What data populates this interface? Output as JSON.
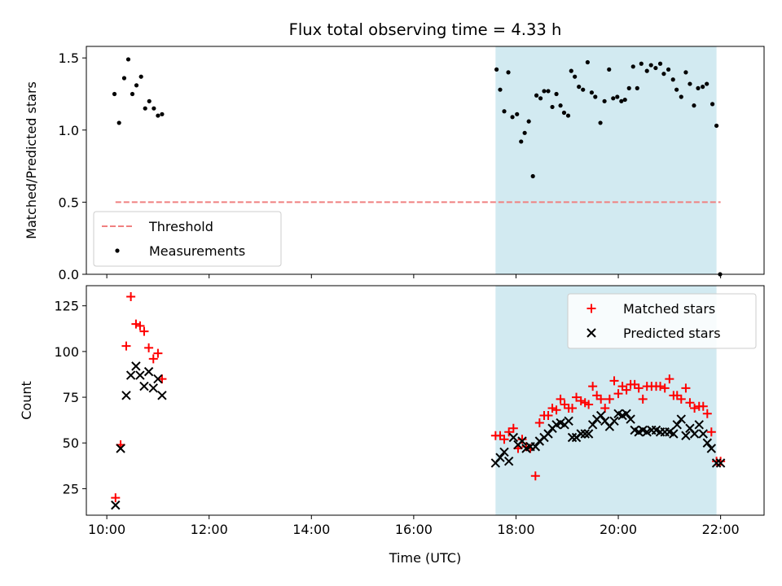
{
  "chart_data": {
    "title": "Flux total observing time = 4.33 h",
    "xlabel": "Time (UTC)",
    "x_unit": "hours (UTC)",
    "x_ticks": [
      {
        "value": 10,
        "label": "10:00"
      },
      {
        "value": 12,
        "label": "12:00"
      },
      {
        "value": 14,
        "label": "14:00"
      },
      {
        "value": 16,
        "label": "16:00"
      },
      {
        "value": 18,
        "label": "18:00"
      },
      {
        "value": 20,
        "label": "20:00"
      },
      {
        "value": 22,
        "label": "22:00"
      }
    ],
    "xlim": [
      9.6,
      22.85
    ],
    "shaded_region": {
      "x_start": 17.6,
      "x_end": 21.92,
      "color": "#add8e6"
    },
    "panels": [
      {
        "type": "scatter",
        "ylabel": "Matched/Predicted stars",
        "ylim": [
          0,
          1.58
        ],
        "y_ticks": [
          {
            "value": 0,
            "label": "0.0"
          },
          {
            "value": 0.5,
            "label": "0.5"
          },
          {
            "value": 1.0,
            "label": "1.0"
          },
          {
            "value": 1.5,
            "label": "1.5"
          }
        ],
        "legend": {
          "position": "lower-left"
        },
        "threshold": {
          "name": "Threshold",
          "value": 0.5,
          "x_start": 10.17,
          "x_end": 22.0,
          "color": "#f08080"
        },
        "series": [
          {
            "name": "Measurements",
            "marker": "dot",
            "color": "#000000",
            "x": [
              10.15,
              10.24,
              10.34,
              10.42,
              10.5,
              10.58,
              10.67,
              10.75,
              10.83,
              10.92,
              11.0,
              11.08,
              17.62,
              17.69,
              17.77,
              17.85,
              17.93,
              18.02,
              18.1,
              18.17,
              18.25,
              18.33,
              18.4,
              18.48,
              18.55,
              18.63,
              18.71,
              18.79,
              18.87,
              18.94,
              19.02,
              19.08,
              19.15,
              19.23,
              19.31,
              19.4,
              19.48,
              19.55,
              19.65,
              19.73,
              19.82,
              19.9,
              19.98,
              20.06,
              20.13,
              20.21,
              20.29,
              20.37,
              20.45,
              20.56,
              20.64,
              20.73,
              20.82,
              20.89,
              20.98,
              21.07,
              21.14,
              21.23,
              21.32,
              21.4,
              21.48,
              21.56,
              21.65,
              21.73,
              21.84,
              21.92,
              21.99
            ],
            "y": [
              1.25,
              1.05,
              1.36,
              1.49,
              1.25,
              1.31,
              1.37,
              1.15,
              1.2,
              1.15,
              1.1,
              1.11,
              1.42,
              1.28,
              1.13,
              1.4,
              1.09,
              1.11,
              0.92,
              0.98,
              1.06,
              0.68,
              1.24,
              1.22,
              1.27,
              1.27,
              1.16,
              1.25,
              1.17,
              1.12,
              1.1,
              1.41,
              1.37,
              1.3,
              1.28,
              1.47,
              1.26,
              1.23,
              1.05,
              1.2,
              1.42,
              1.22,
              1.23,
              1.2,
              1.21,
              1.29,
              1.44,
              1.29,
              1.46,
              1.41,
              1.45,
              1.43,
              1.46,
              1.39,
              1.42,
              1.35,
              1.28,
              1.23,
              1.4,
              1.32,
              1.17,
              1.29,
              1.3,
              1.32,
              1.18,
              1.03,
              0.0
            ]
          }
        ]
      },
      {
        "type": "scatter",
        "ylabel": "Count",
        "ylim": [
          10.5,
          136
        ],
        "y_ticks": [
          {
            "value": 25,
            "label": "25"
          },
          {
            "value": 50,
            "label": "50"
          },
          {
            "value": 75,
            "label": "75"
          },
          {
            "value": 100,
            "label": "100"
          },
          {
            "value": 125,
            "label": "125"
          }
        ],
        "legend": {
          "position": "top-right"
        },
        "series": [
          {
            "name": "Matched stars",
            "marker": "plus",
            "color": "#ff0000",
            "x": [
              10.17,
              10.27,
              10.38,
              10.47,
              10.57,
              10.65,
              10.73,
              10.82,
              10.91,
              11.0,
              11.08,
              17.6,
              17.69,
              17.77,
              17.86,
              17.95,
              18.04,
              18.12,
              18.2,
              18.28,
              18.38,
              18.46,
              18.55,
              18.63,
              18.71,
              18.79,
              18.87,
              18.95,
              19.03,
              19.1,
              19.18,
              19.27,
              19.35,
              19.42,
              19.5,
              19.58,
              19.66,
              19.74,
              19.83,
              19.92,
              20.0,
              20.08,
              20.16,
              20.24,
              20.32,
              20.4,
              20.48,
              20.56,
              20.65,
              20.74,
              20.82,
              20.91,
              21.0,
              21.08,
              21.15,
              21.23,
              21.32,
              21.4,
              21.49,
              21.58,
              21.66,
              21.74,
              21.82,
              21.92,
              22.0
            ],
            "y": [
              20,
              49,
              103,
              130,
              115,
              114,
              111,
              102,
              96,
              99,
              85,
              54,
              54,
              52,
              56,
              58,
              47,
              52,
              48,
              47,
              32,
              61,
              65,
              65,
              69,
              68,
              74,
              71,
              69,
              69,
              75,
              73,
              72,
              71,
              81,
              76,
              74,
              69,
              74,
              84,
              77,
              81,
              79,
              82,
              82,
              80,
              74,
              81,
              81,
              81,
              81,
              80,
              85,
              76,
              76,
              74,
              80,
              72,
              69,
              70,
              70,
              66,
              56,
              40,
              40
            ]
          },
          {
            "name": "Predicted stars",
            "marker": "x",
            "color": "#000000",
            "x": [
              10.17,
              10.27,
              10.38,
              10.47,
              10.57,
              10.65,
              10.73,
              10.82,
              10.91,
              11.0,
              11.08,
              17.6,
              17.69,
              17.77,
              17.86,
              17.95,
              18.04,
              18.12,
              18.2,
              18.28,
              18.38,
              18.46,
              18.55,
              18.63,
              18.71,
              18.79,
              18.87,
              18.95,
              19.03,
              19.1,
              19.18,
              19.27,
              19.35,
              19.42,
              19.5,
              19.58,
              19.66,
              19.74,
              19.83,
              19.92,
              20.0,
              20.08,
              20.16,
              20.24,
              20.32,
              20.4,
              20.48,
              20.56,
              20.65,
              20.74,
              20.82,
              20.91,
              21.0,
              21.08,
              21.15,
              21.23,
              21.32,
              21.4,
              21.49,
              21.58,
              21.66,
              21.74,
              21.82,
              21.92,
              22.0
            ],
            "y": [
              16,
              47,
              76,
              87,
              92,
              87,
              81,
              89,
              80,
              85,
              76,
              39,
              42,
              45,
              40,
              53,
              49,
              51,
              47,
              48,
              48,
              51,
              53,
              55,
              58,
              60,
              61,
              60,
              62,
              53,
              53,
              55,
              55,
              55,
              60,
              63,
              65,
              62,
              59,
              62,
              66,
              65,
              66,
              63,
              57,
              56,
              57,
              56,
              57,
              57,
              56,
              56,
              56,
              55,
              60,
              63,
              54,
              58,
              55,
              60,
              55,
              50,
              47,
              39,
              39
            ]
          }
        ]
      }
    ]
  }
}
